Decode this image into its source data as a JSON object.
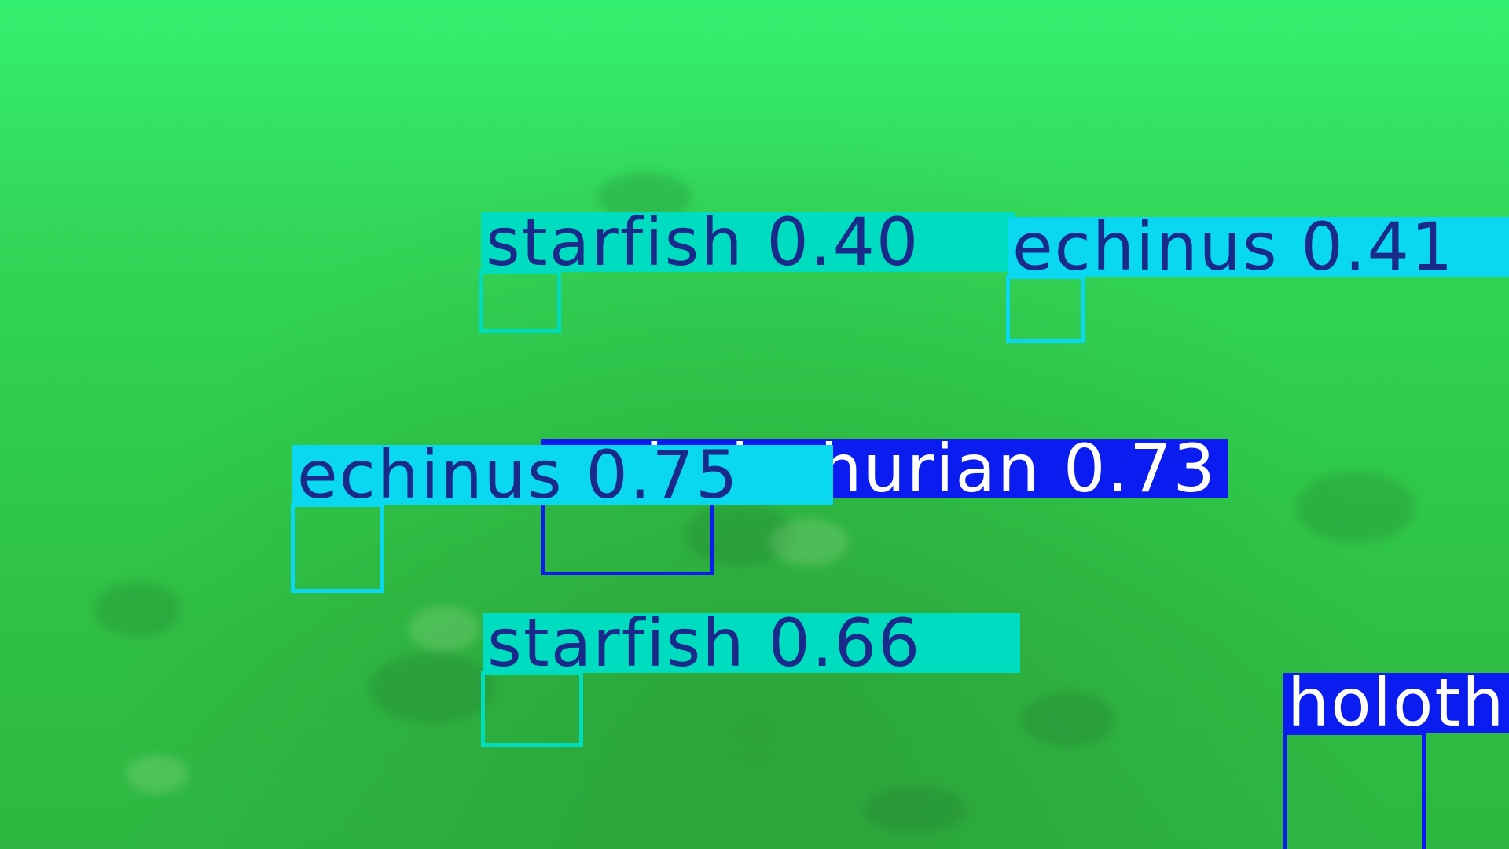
{
  "colors": {
    "starfish": "#00dcc0",
    "echinus": "#0ad8f0",
    "holothurian": "#0a1cf0",
    "dark_text": "#1a2a8a",
    "light_text": "#ffffff"
  },
  "detections": [
    {
      "class": "holothurian",
      "label": "holothurian 0.73",
      "icon": "detection-box"
    },
    {
      "class": "starfish",
      "label": "starfish 0.40",
      "icon": "detection-box"
    },
    {
      "class": "echinus",
      "label": "echinus 0.41",
      "icon": "detection-box"
    },
    {
      "class": "echinus",
      "label": "echinus 0.75",
      "icon": "detection-box"
    },
    {
      "class": "starfish",
      "label": "starfish 0.66",
      "icon": "detection-box"
    },
    {
      "class": "holothurian",
      "label": "holothurian",
      "icon": "detection-box"
    }
  ]
}
